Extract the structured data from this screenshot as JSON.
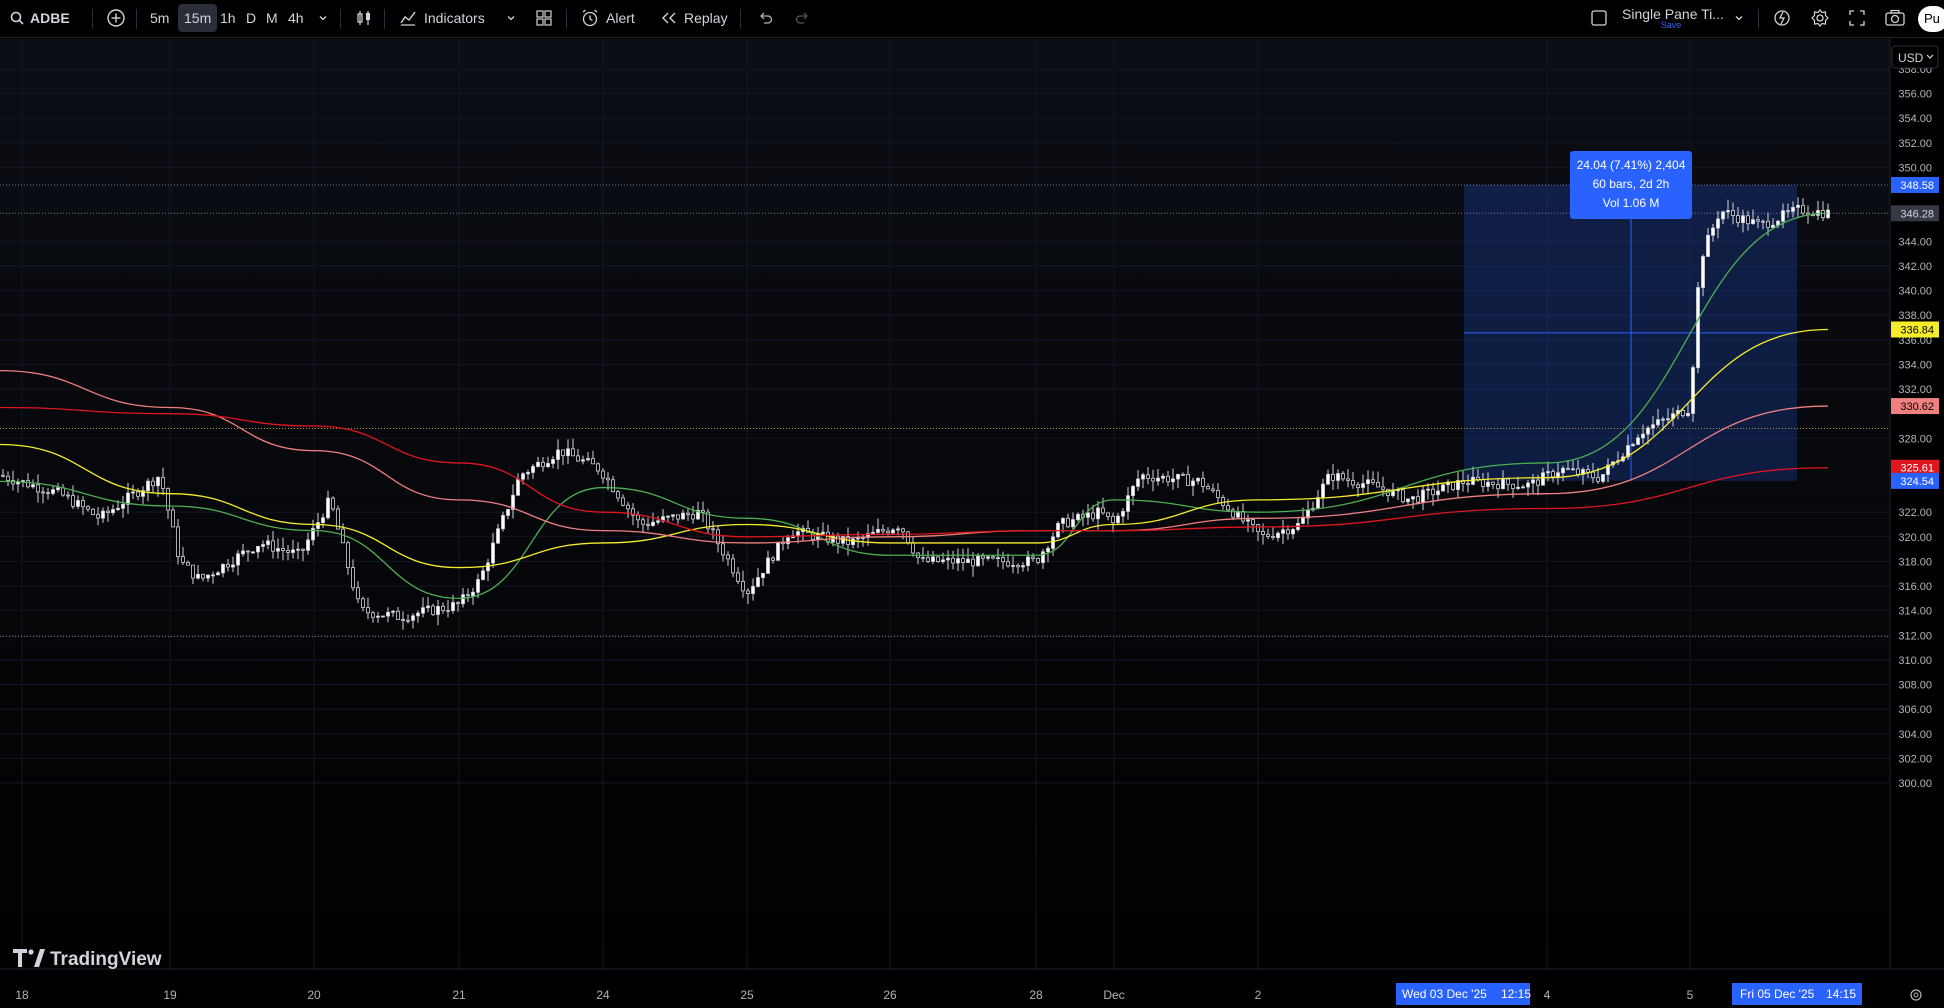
{
  "toolbar": {
    "symbol": "ADBE",
    "intervals": [
      "5m",
      "15m",
      "1h",
      "D",
      "M",
      "4h"
    ],
    "active_interval": "15m",
    "indicators_label": "Indicators",
    "alert_label": "Alert",
    "replay_label": "Replay",
    "layout_name": "Single Pane Ti...",
    "layout_sub": "Save",
    "publish_label": "Pu"
  },
  "price_axis": {
    "currency": "USD",
    "ticks": [
      "358.00",
      "356.00",
      "354.00",
      "352.00",
      "350.00",
      "344.00",
      "342.00",
      "340.00",
      "338.00",
      "336.00",
      "334.00",
      "332.00",
      "328.00",
      "322.00",
      "320.00",
      "318.00",
      "316.00",
      "314.00",
      "312.00",
      "310.00",
      "308.00",
      "306.00",
      "304.00",
      "302.00",
      "300.00"
    ],
    "badges": [
      {
        "label": "348.58",
        "value": 348.58,
        "bg": "#2962ff",
        "fg": "#ffffff"
      },
      {
        "label": "346.28",
        "value": 346.28,
        "bg": "#363a45",
        "fg": "#d1d4dc"
      },
      {
        "label": "336.84",
        "value": 336.84,
        "bg": "#f7ec2a",
        "fg": "#000000"
      },
      {
        "label": "330.62",
        "value": 330.62,
        "bg": "#f08080",
        "fg": "#000000"
      },
      {
        "label": "325.61",
        "value": 325.61,
        "bg": "#e0161f",
        "fg": "#ffffff"
      },
      {
        "label": "324.54",
        "value": 324.54,
        "bg": "#2962ff",
        "fg": "#ffffff"
      }
    ]
  },
  "time_axis": {
    "labels": [
      "18",
      "19",
      "20",
      "21",
      "24",
      "25",
      "26",
      "28",
      "Dec",
      "2",
      "4",
      "5"
    ],
    "range_start": {
      "date": "Wed 03 Dec '25",
      "time": "12:15"
    },
    "range_end": {
      "date": "Fri 05 Dec '25",
      "time": "14:15"
    }
  },
  "measure": {
    "line1": "24.04 (7.41%) 2,404",
    "line2": "60 bars, 2d 2h",
    "line3": "Vol 1.06 M",
    "low": 324.54,
    "high": 348.58
  },
  "horizontal_lines": [
    {
      "price": 348.58,
      "color": "#787b86"
    },
    {
      "price": 346.28,
      "color": "#787b86"
    },
    {
      "price": 328.8,
      "color": "#c8a415"
    },
    {
      "price": 311.9,
      "color": "#787b86"
    }
  ],
  "chart_data": {
    "type": "line",
    "x": [
      "18",
      "19",
      "20",
      "21",
      "24",
      "25",
      "26",
      "28",
      "Dec",
      "2",
      "4",
      "5"
    ],
    "series": [
      {
        "name": "",
        "color": "#4caf50",
        "values": [
          324.5,
          322.5,
          320.5,
          315.0,
          324.0,
          321.5,
          318.5,
          318.5,
          323.0,
          322.0,
          326.0,
          346.28
        ]
      },
      {
        "name": "",
        "color": "#f7ec2a",
        "values": [
          327.5,
          323.5,
          321.0,
          317.5,
          319.5,
          321.0,
          319.5,
          319.5,
          321.0,
          323.0,
          324.8,
          336.84
        ]
      },
      {
        "name": "",
        "color": "#f08080",
        "values": [
          333.5,
          330.5,
          327.0,
          323.0,
          320.5,
          319.5,
          320.0,
          320.5,
          320.5,
          321.5,
          323.5,
          330.62
        ]
      },
      {
        "name": "",
        "color": "#e0161f",
        "values": [
          330.5,
          330.0,
          329.0,
          326.0,
          322.0,
          320.0,
          320.2,
          320.5,
          320.5,
          320.8,
          322.3,
          325.61
        ]
      }
    ],
    "price_range": [
      300.0,
      358.0
    ],
    "last_price": 346.28
  },
  "branding": "TradingView"
}
